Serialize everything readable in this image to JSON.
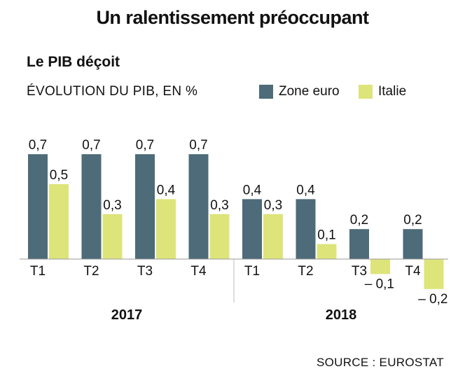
{
  "header": {
    "title": "Un ralentissement préoccupant",
    "subtitle": "Le PIB déçoit",
    "units": "ÉVOLUTION DU PIB, EN %"
  },
  "colors": {
    "zone_euro": "#4d6b78",
    "italie": "#dde47a",
    "axis": "#9a9a9a"
  },
  "footer": {
    "source": "SOURCE : EUROSTAT"
  },
  "chart_data": {
    "type": "bar",
    "title": "Un ralentissement préoccupant",
    "subtitle": "Le PIB déçoit",
    "ylabel": "ÉVOLUTION DU PIB, EN %",
    "xlabel": "",
    "legend_position": "top-right",
    "grid": false,
    "ylim": [
      -0.2,
      0.7
    ],
    "groups": [
      {
        "label": "2017",
        "categories": [
          "T1",
          "T2",
          "T3",
          "T4"
        ]
      },
      {
        "label": "2018",
        "categories": [
          "T1",
          "T2",
          "T3",
          "T4"
        ]
      }
    ],
    "categories": [
      "T1",
      "T2",
      "T3",
      "T4",
      "T1",
      "T2",
      "T3",
      "T4"
    ],
    "series": [
      {
        "name": "Zone euro",
        "values": [
          0.7,
          0.7,
          0.7,
          0.7,
          0.4,
          0.4,
          0.2,
          0.2
        ],
        "labels": [
          "0,7",
          "0,7",
          "0,7",
          "0,7",
          "0,4",
          "0,4",
          "0,2",
          "0,2"
        ]
      },
      {
        "name": "Italie",
        "values": [
          0.5,
          0.3,
          0.4,
          0.3,
          0.3,
          0.1,
          -0.1,
          -0.2
        ],
        "labels": [
          "0,5",
          "0,3",
          "0,4",
          "0,3",
          "0,3",
          "0,1",
          "– 0,1",
          "– 0,2"
        ]
      }
    ]
  }
}
